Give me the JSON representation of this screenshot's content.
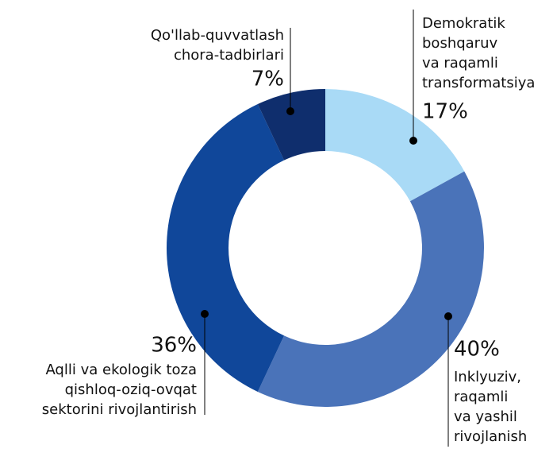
{
  "chart_data": {
    "type": "donut",
    "categories": [
      [
        "Demokratik",
        "boshqaruv",
        "va raqamli",
        "transformatsiya"
      ],
      [
        "Inklyuziv,",
        "raqamli",
        "va yashil",
        "rivojlanish"
      ],
      [
        "Aqlli va ekologik toza",
        "qishloq-oziq-ovqat",
        "sektorini rivojlantirish"
      ],
      [
        "Qo'llab-quvvatlash",
        "chora-tadbirlari"
      ]
    ],
    "values": [
      17,
      40,
      36,
      7
    ],
    "value_labels": [
      "17%",
      "40%",
      "36%",
      "7%"
    ],
    "colors": [
      "#a9daf6",
      "#4a73b9",
      "#10479a",
      "#0f2e6d"
    ]
  }
}
